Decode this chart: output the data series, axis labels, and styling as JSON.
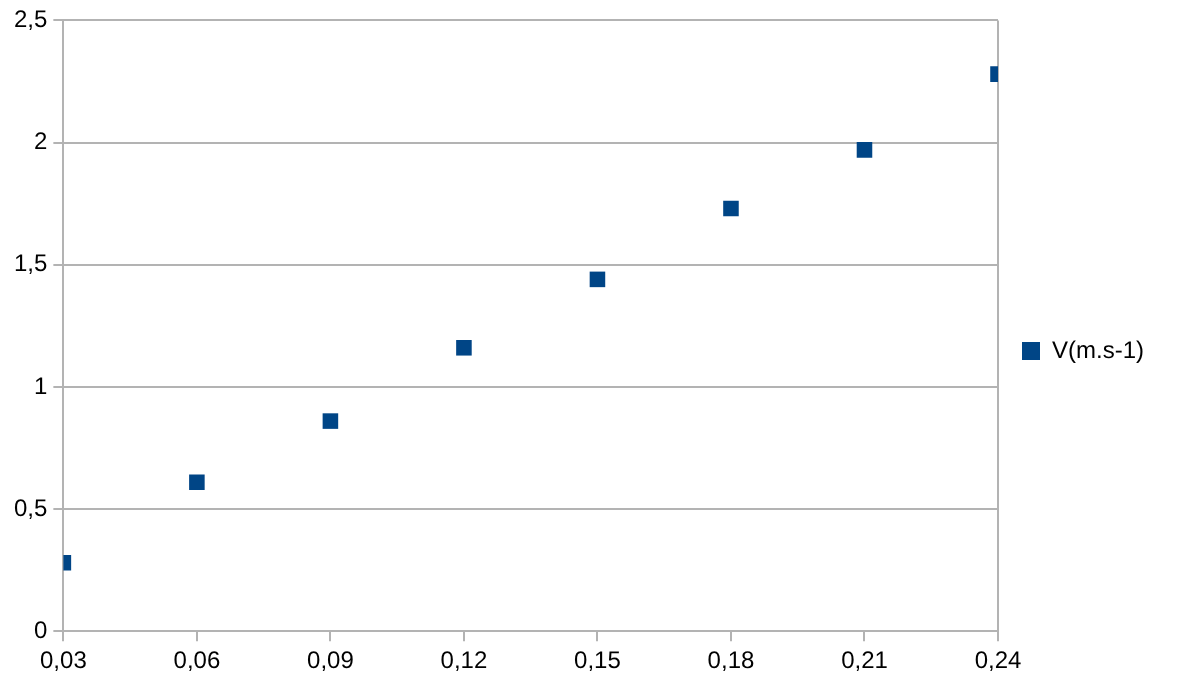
{
  "chart_data": {
    "type": "scatter",
    "x": [
      0.03,
      0.06,
      0.09,
      0.12,
      0.15,
      0.18,
      0.21,
      0.24
    ],
    "series": [
      {
        "name": "V(m.s-1)",
        "color": "#004586",
        "values": [
          0.28,
          0.61,
          0.86,
          1.16,
          1.44,
          1.73,
          1.97,
          2.28
        ]
      }
    ],
    "xlim": [
      0.03,
      0.24
    ],
    "xticks": [
      {
        "value": 0.03,
        "label": "0,03"
      },
      {
        "value": 0.06,
        "label": "0,06"
      },
      {
        "value": 0.09,
        "label": "0,09"
      },
      {
        "value": 0.12,
        "label": "0,12"
      },
      {
        "value": 0.15,
        "label": "0,15"
      },
      {
        "value": 0.18,
        "label": "0,18"
      },
      {
        "value": 0.21,
        "label": "0,21"
      },
      {
        "value": 0.24,
        "label": "0,24"
      }
    ],
    "ylim": [
      0,
      2.5
    ],
    "yticks": [
      0,
      {
        "value": 0.5,
        "label": "0,5"
      },
      1,
      {
        "value": 1.5,
        "label": "1,5"
      },
      2,
      {
        "value": 2.5,
        "label": "2,5"
      }
    ],
    "grid": "y",
    "legend": "right",
    "marker": "square"
  }
}
